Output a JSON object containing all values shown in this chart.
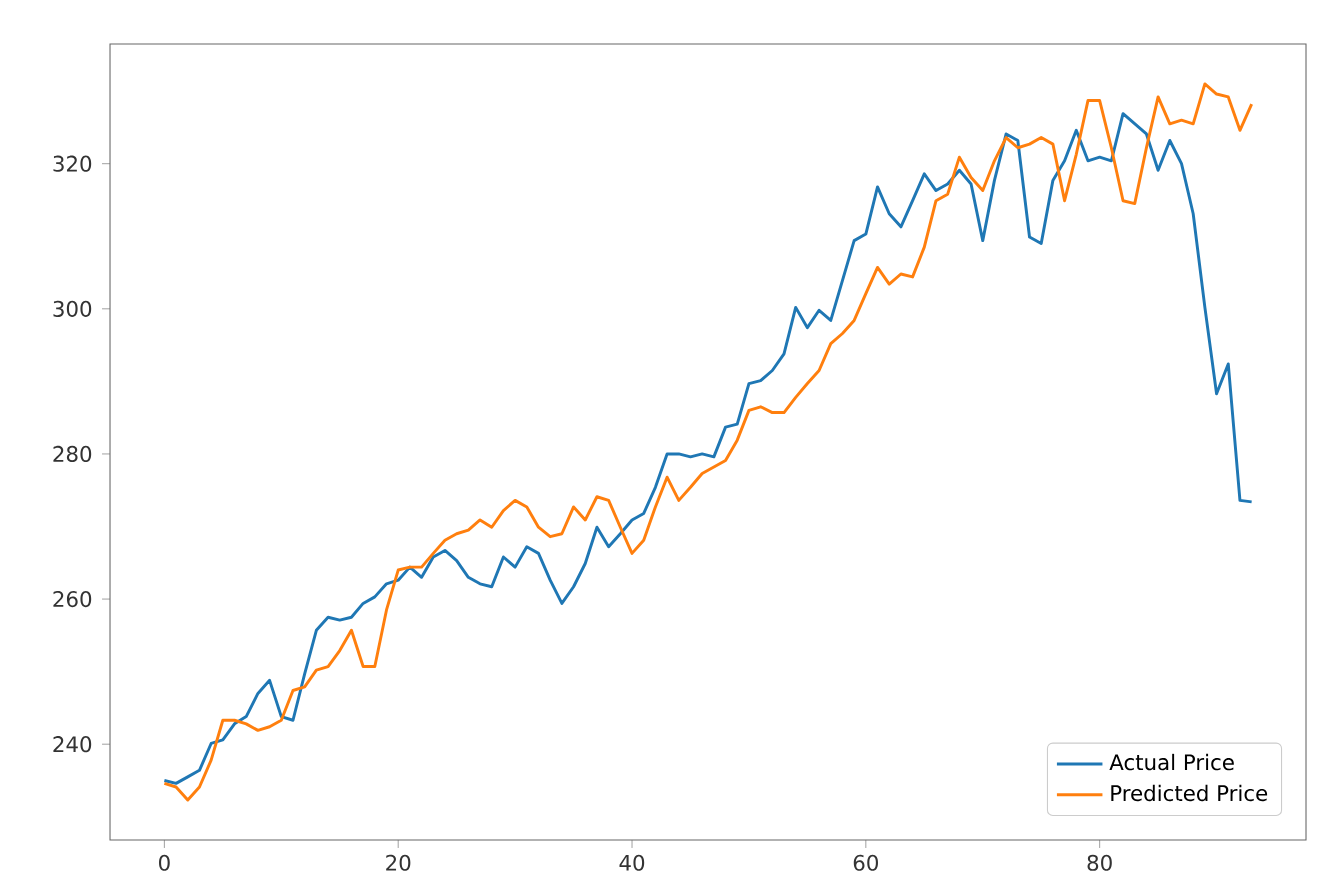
{
  "chart_data": {
    "type": "line",
    "x": [
      0,
      1,
      2,
      3,
      4,
      5,
      6,
      7,
      8,
      9,
      10,
      11,
      12,
      13,
      14,
      15,
      16,
      17,
      18,
      19,
      20,
      21,
      22,
      23,
      24,
      25,
      26,
      27,
      28,
      29,
      30,
      31,
      32,
      33,
      34,
      35,
      36,
      37,
      38,
      39,
      40,
      41,
      42,
      43,
      44,
      45,
      46,
      47,
      48,
      49,
      50,
      51,
      52,
      53,
      54,
      55,
      56,
      57,
      58,
      59,
      60,
      61,
      62,
      63,
      64,
      65,
      66,
      67,
      68,
      69,
      70,
      71,
      72,
      73,
      74,
      75,
      76,
      77,
      78,
      79,
      80,
      81,
      82,
      83,
      84,
      85,
      86,
      87,
      88,
      89,
      90,
      91,
      92,
      93
    ],
    "series": [
      {
        "name": "Actual Price",
        "color": "#1f77b4",
        "values": [
          235.0,
          234.6,
          235.5,
          236.4,
          240.1,
          240.6,
          242.8,
          243.8,
          247.0,
          248.8,
          243.8,
          243.3,
          249.7,
          255.7,
          257.5,
          257.1,
          257.5,
          259.4,
          260.3,
          262.1,
          262.6,
          264.4,
          263.0,
          265.8,
          266.7,
          265.3,
          263.0,
          262.1,
          261.7,
          265.8,
          264.4,
          267.2,
          266.3,
          262.6,
          259.4,
          261.7,
          264.9,
          269.9,
          267.2,
          269.0,
          270.9,
          271.8,
          275.4,
          280.0,
          280.0,
          279.6,
          280.0,
          279.6,
          283.7,
          284.1,
          289.7,
          290.1,
          291.5,
          293.8,
          300.2,
          297.4,
          299.8,
          298.4,
          303.9,
          309.4,
          310.3,
          316.8,
          313.1,
          311.3,
          314.9,
          318.6,
          316.3,
          317.2,
          319.1,
          317.2,
          309.4,
          317.7,
          324.1,
          323.2,
          309.9,
          309.0,
          317.7,
          320.4,
          324.6,
          320.4,
          320.9,
          320.4,
          326.9,
          325.5,
          324.1,
          319.1,
          323.2,
          320.0,
          313.1,
          300.2,
          288.3,
          292.4,
          273.6,
          273.4
        ]
      },
      {
        "name": "Predicted Price",
        "color": "#ff7f0e",
        "values": [
          234.6,
          234.1,
          232.3,
          234.1,
          237.8,
          243.3,
          243.3,
          242.8,
          241.9,
          242.4,
          243.3,
          247.4,
          247.9,
          250.2,
          250.7,
          252.9,
          255.7,
          250.7,
          250.7,
          258.5,
          264.0,
          264.4,
          264.4,
          266.3,
          268.1,
          269.0,
          269.5,
          270.9,
          269.9,
          272.2,
          273.6,
          272.7,
          269.9,
          268.6,
          269.0,
          272.7,
          270.9,
          274.1,
          273.6,
          269.9,
          266.3,
          268.1,
          272.7,
          276.8,
          273.6,
          275.4,
          277.3,
          278.2,
          279.1,
          281.9,
          286.0,
          286.5,
          285.7,
          285.7,
          287.8,
          289.7,
          291.5,
          295.2,
          296.6,
          298.4,
          302.1,
          305.7,
          303.4,
          304.8,
          304.4,
          308.5,
          314.9,
          315.8,
          320.9,
          318.1,
          316.3,
          320.4,
          323.6,
          322.2,
          322.7,
          323.6,
          322.7,
          314.9,
          321.3,
          328.7,
          328.7,
          322.2,
          314.9,
          314.5,
          322.2,
          329.2,
          325.5,
          326.0,
          325.5,
          331.0,
          329.6,
          329.2,
          324.6,
          328.2
        ]
      }
    ],
    "xlim": [
      -4.65,
      97.65
    ],
    "ylim": [
      226.8,
      336.5
    ],
    "xticks": [
      0,
      20,
      40,
      60,
      80
    ],
    "yticks": [
      240,
      260,
      280,
      300,
      320
    ],
    "grid": false,
    "legend": "bottom right",
    "marker": "none",
    "line_style": "solid"
  }
}
